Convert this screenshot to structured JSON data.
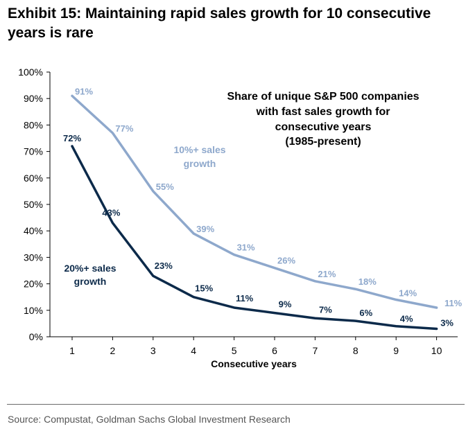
{
  "title": "Exhibit 15: Maintaining rapid sales growth for 10 consecutive years is rare",
  "source": "Source: Compustat, Goldman Sachs Global Investment Research",
  "colors": {
    "series_10": "#8ea8cc",
    "series_20": "#0c2a4a",
    "axis": "#000000"
  },
  "chart_data": {
    "type": "line",
    "title": "Share of unique S&P 500 companies with fast sales growth for consecutive years (1985-present)",
    "title_lines": [
      "Share of unique S&P 500 companies",
      "with fast sales growth for",
      "consecutive years",
      "(1985-present)"
    ],
    "xlabel": "Consecutive years",
    "ylabel": "",
    "x": [
      1,
      2,
      3,
      4,
      5,
      6,
      7,
      8,
      9,
      10
    ],
    "x_tick_labels": [
      "1",
      "2",
      "3",
      "4",
      "5",
      "6",
      "7",
      "8",
      "9",
      "10"
    ],
    "ylim": [
      0,
      100
    ],
    "y_ticks": [
      0,
      10,
      20,
      30,
      40,
      50,
      60,
      70,
      80,
      90,
      100
    ],
    "y_tick_labels": [
      "0%",
      "10%",
      "20%",
      "30%",
      "40%",
      "50%",
      "60%",
      "70%",
      "80%",
      "90%",
      "100%"
    ],
    "grid": false,
    "series": [
      {
        "name": "10%+ sales growth",
        "label_lines": [
          "10%+ sales",
          "growth"
        ],
        "values": [
          91,
          77,
          55,
          39,
          31,
          26,
          21,
          18,
          14,
          11
        ],
        "data_labels": [
          "91%",
          "77%",
          "55%",
          "39%",
          "31%",
          "26%",
          "21%",
          "18%",
          "14%",
          "11%"
        ]
      },
      {
        "name": "20%+ sales growth",
        "label_lines": [
          "20%+ sales",
          "growth"
        ],
        "values": [
          72,
          43,
          23,
          15,
          11,
          9,
          7,
          6,
          4,
          3
        ],
        "data_labels": [
          "72%",
          "43%",
          "23%",
          "15%",
          "11%",
          "9%",
          "7%",
          "6%",
          "4%",
          "3%"
        ]
      }
    ]
  }
}
